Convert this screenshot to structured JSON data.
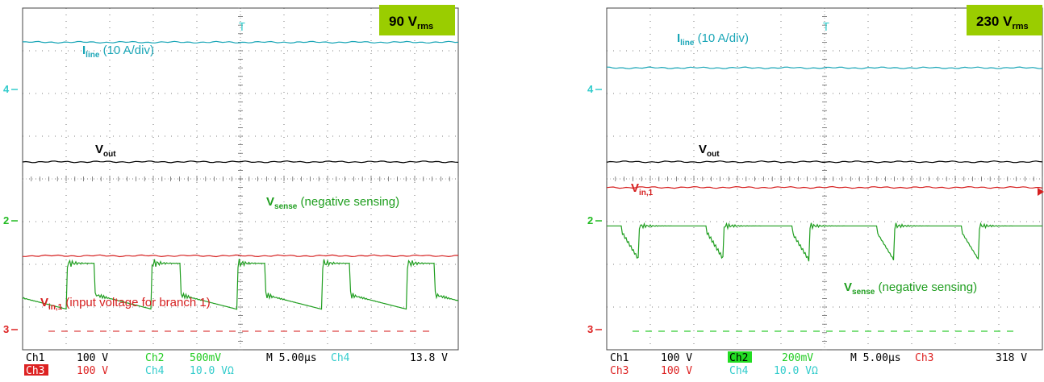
{
  "panels": [
    {
      "badge": {
        "value": "90 V",
        "sub": "rms",
        "color": "#9acd00"
      },
      "channel_markers": [
        {
          "text": "4",
          "color": "#33cccc"
        },
        {
          "text": "2",
          "color": "#22bb22"
        },
        {
          "text": "3",
          "color": "#dd2222"
        }
      ],
      "traces": [
        {
          "name": "I",
          "sub": "line",
          "suffix": " (10 A/div)",
          "color": "#1aa6b7",
          "level_div": 0.8
        },
        {
          "name": "V",
          "sub": "out",
          "suffix": "",
          "color": "#000000",
          "level_div": 3.6
        },
        {
          "name": "V",
          "sub": "sense",
          "suffix": " (negative sensing)",
          "color": "#1f9e1f",
          "waveform": "pulse-up"
        },
        {
          "name": "V",
          "sub": "in,1",
          "suffix": " (input voltage for branch 1)",
          "color": "#d62020",
          "level_div": 5.8
        }
      ],
      "readout": {
        "row1": [
          {
            "text": "Ch1",
            "color": "#000000"
          },
          {
            "text": "100 V",
            "color": "#000000"
          },
          {
            "text": "Ch2",
            "color": "#22cc22"
          },
          {
            "text": "500mV",
            "color": "#22cc22"
          },
          {
            "text": "M 5.00µs",
            "color": "#000000"
          },
          {
            "text": "Ch4",
            "color": "#33cccc"
          },
          {
            "text": "13.8 V",
            "color": "#000000"
          }
        ],
        "row2": [
          {
            "text": "Ch3",
            "color": "#ffffff",
            "bg": "#dd2222"
          },
          {
            "text": "100 V",
            "color": "#dd2222"
          },
          {
            "text": "Ch4",
            "color": "#33cccc"
          },
          {
            "text": "10.0 VΩ",
            "color": "#33cccc"
          }
        ]
      }
    },
    {
      "badge": {
        "value": "230 V",
        "sub": "rms",
        "color": "#9acd00"
      },
      "channel_markers": [
        {
          "text": "4",
          "color": "#33cccc"
        },
        {
          "text": "2",
          "color": "#22bb22"
        },
        {
          "text": "3",
          "color": "#dd2222"
        }
      ],
      "traces": [
        {
          "name": "I",
          "sub": "line",
          "suffix": " (10 A/div)",
          "color": "#1aa6b7",
          "level_div": 1.4
        },
        {
          "name": "V",
          "sub": "out",
          "suffix": "",
          "color": "#000000",
          "level_div": 3.6
        },
        {
          "name": "V",
          "sub": "in,1",
          "suffix": "",
          "color": "#d62020",
          "level_div": 4.2
        },
        {
          "name": "V",
          "sub": "sense",
          "suffix": " (negative sensing)",
          "color": "#1f9e1f",
          "waveform": "pulse-down"
        }
      ],
      "readout": {
        "row1": [
          {
            "text": "Ch1",
            "color": "#000000"
          },
          {
            "text": "100 V",
            "color": "#000000"
          },
          {
            "text": "Ch2",
            "color": "#000000",
            "bg": "#22dd22"
          },
          {
            "text": "200mV",
            "color": "#22cc22"
          },
          {
            "text": "M 5.00µs",
            "color": "#000000"
          },
          {
            "text": "Ch3",
            "color": "#dd2222"
          },
          {
            "text": "318 V",
            "color": "#000000"
          }
        ],
        "row2": [
          {
            "text": "Ch3",
            "color": "#dd2222"
          },
          {
            "text": "100 V",
            "color": "#dd2222"
          },
          {
            "text": "Ch4",
            "color": "#33cccc"
          },
          {
            "text": "10.0 VΩ",
            "color": "#33cccc"
          }
        ]
      }
    }
  ],
  "chart_data": [
    {
      "type": "line",
      "title": "90 Vrms",
      "x_unit": "µs",
      "time_per_div": 5.0,
      "x_divisions": 10,
      "y_divisions": 8,
      "grid": true,
      "series": [
        {
          "name": "Iline (10 A/div)",
          "scale": "10 A/div",
          "shape": "flat",
          "level_div": 0.8
        },
        {
          "name": "Vout",
          "scale": "100 V/div",
          "shape": "flat",
          "level_div": 3.6
        },
        {
          "name": "Vsense (negative sensing)",
          "scale": "500mV/div",
          "shape": "pulse train, positive pulses",
          "period_us": 5.0
        },
        {
          "name": "Vin,1 (input voltage for branch 1)",
          "scale": "100 V/div",
          "shape": "flat",
          "level_div": 5.8
        }
      ]
    },
    {
      "type": "line",
      "title": "230 Vrms",
      "x_unit": "µs",
      "time_per_div": 5.0,
      "x_divisions": 10,
      "y_divisions": 8,
      "grid": true,
      "series": [
        {
          "name": "Iline (10 A/div)",
          "scale": "10 A/div",
          "shape": "flat",
          "level_div": 1.4
        },
        {
          "name": "Vout",
          "scale": "100 V/div",
          "shape": "flat",
          "level_div": 3.6
        },
        {
          "name": "Vin,1",
          "scale": "100 V/div",
          "shape": "flat",
          "level_div": 4.2
        },
        {
          "name": "Vsense (negative sensing)",
          "scale": "200mV/div",
          "shape": "pulse train, negative pulses",
          "period_us": 5.0
        }
      ]
    }
  ]
}
